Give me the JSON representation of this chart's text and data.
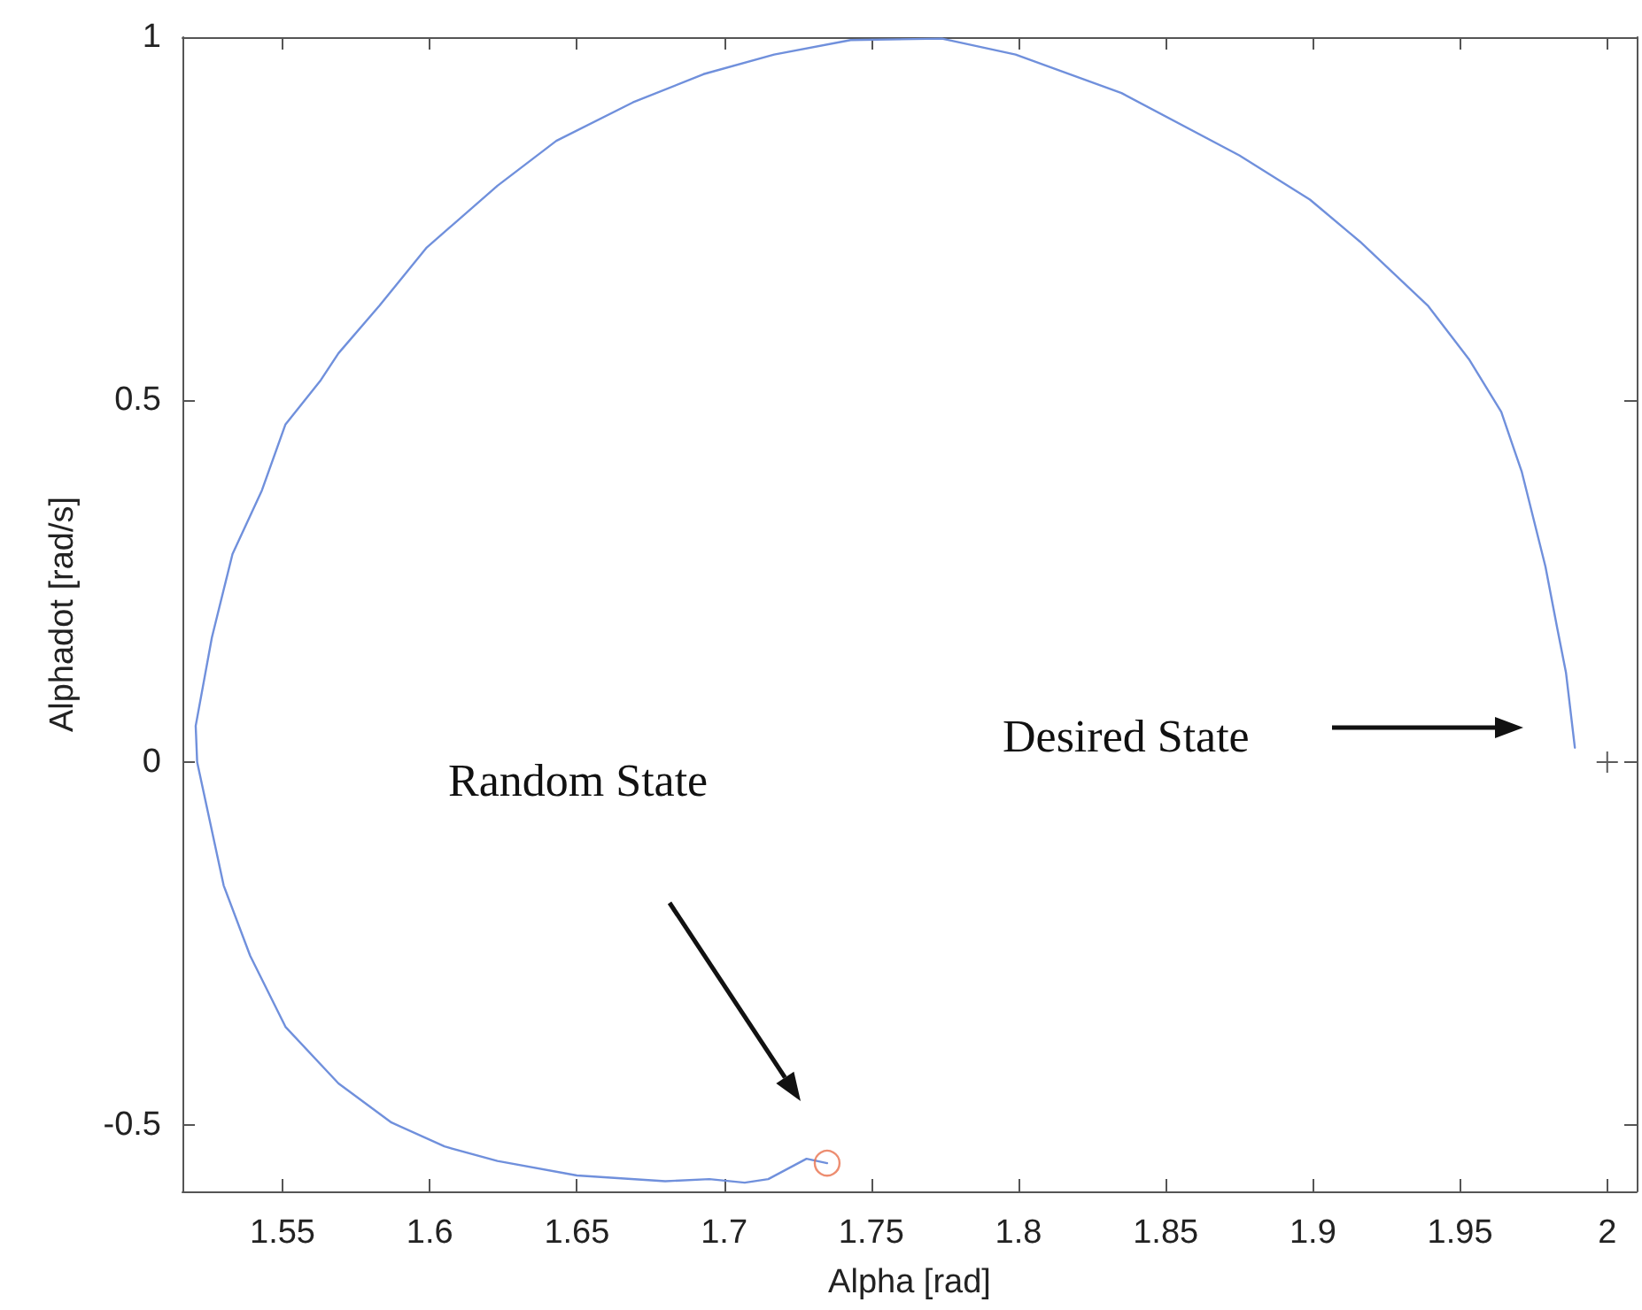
{
  "chart_data": {
    "type": "line",
    "xlabel": "Alpha [rad]",
    "ylabel": "Alphadot [rad/s]",
    "xlim": [
      1.516,
      2.01
    ],
    "ylim": [
      -0.592,
      1
    ],
    "xticks": [
      1.55,
      1.6,
      1.65,
      1.7,
      1.75,
      1.8,
      1.85,
      1.9,
      1.95,
      2
    ],
    "yticks": [
      -0.5,
      0,
      0.5,
      1
    ],
    "grid": false,
    "series": [
      {
        "color": "#7090dc",
        "marker": "none",
        "line_style": "solid",
        "x": [
          1.735,
          1.728,
          1.715,
          1.707,
          1.695,
          1.68,
          1.65,
          1.623,
          1.605,
          1.587,
          1.569,
          1.551,
          1.539,
          1.53,
          1.521,
          1.5205,
          1.526,
          1.533,
          1.543,
          1.551,
          1.563,
          1.569,
          1.583,
          1.599,
          1.623,
          1.643,
          1.669,
          1.693,
          1.717,
          1.743,
          1.774,
          1.799,
          1.835,
          1.875,
          1.899,
          1.916,
          1.939,
          1.953,
          1.964,
          1.971,
          1.979,
          1.983,
          1.986,
          1.989
        ],
        "values": [
          -0.553,
          -0.547,
          -0.575,
          -0.58,
          -0.575,
          -0.578,
          -0.57,
          -0.55,
          -0.53,
          -0.497,
          -0.443,
          -0.365,
          -0.267,
          -0.17,
          0,
          0.05,
          0.172,
          0.287,
          0.375,
          0.466,
          0.527,
          0.564,
          0.63,
          0.71,
          0.795,
          0.857,
          0.91,
          0.949,
          0.976,
          0.996,
          0.998,
          0.976,
          0.923,
          0.837,
          0.776,
          0.718,
          0.63,
          0.556,
          0.483,
          0.4,
          0.27,
          0.185,
          0.123,
          0.02
        ]
      },
      {
        "type": "scatter",
        "color": "#e8704c",
        "marker": "circle",
        "x": [
          1.735
        ],
        "values": [
          -0.553
        ]
      },
      {
        "type": "scatter",
        "color": "#333333",
        "marker": "cross",
        "x": [
          2.0
        ],
        "values": [
          0
        ]
      }
    ],
    "annotations": [
      "Random State",
      "Desired State"
    ]
  }
}
